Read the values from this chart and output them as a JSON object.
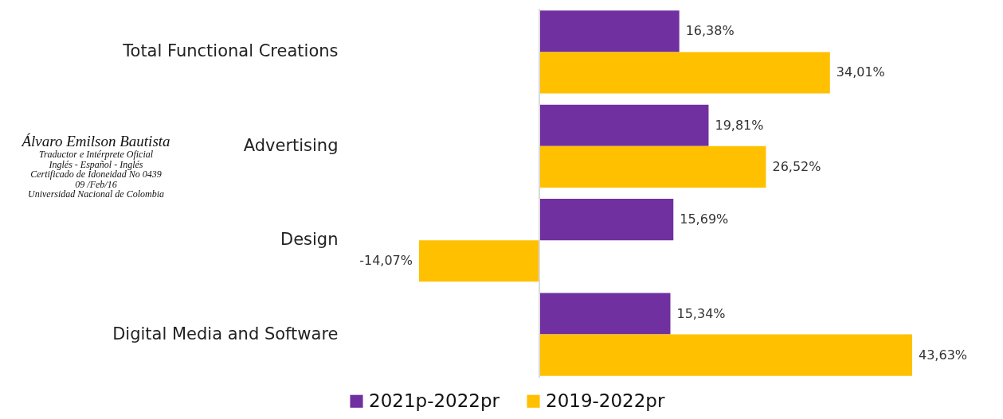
{
  "chart_data": {
    "type": "bar",
    "orientation": "horizontal",
    "categories": [
      "Total Functional Creations",
      "Advertising",
      "Design",
      "Digital Media and Software"
    ],
    "series": [
      {
        "name": "2021p-2022pr",
        "color": "#7030a0",
        "values": [
          16.38,
          19.81,
          15.69,
          15.34
        ],
        "value_labels": [
          "16,38%",
          "19,81%",
          "15,69%",
          "15,34%"
        ]
      },
      {
        "name": "2019-2022pr",
        "color": "#ffc000",
        "values": [
          34.01,
          26.52,
          -14.07,
          43.63
        ],
        "value_labels": [
          "34,01%",
          "26,52%",
          "-14,07%",
          "43,63%"
        ]
      }
    ],
    "legend": "bottom",
    "annotations": [
      "Álvaro Emilson Bautista",
      "Traductor e Intérprete Oficial",
      "Inglés - Español - Inglés",
      "Certificado de Idoneidad No 0439",
      "09 /Feb/16",
      "Universidad Nacional de Colombia"
    ]
  }
}
